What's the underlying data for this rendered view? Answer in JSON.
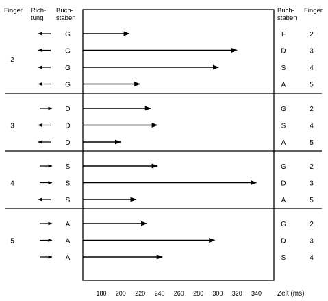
{
  "chart_data": {
    "type": "bar",
    "orientation": "horizontal",
    "headers": {
      "left_finger": "Finger",
      "left_direction": "Rich-tung",
      "left_letters": "Buch-staben",
      "right_letters": "Buch-staben",
      "right_finger": "Finger"
    },
    "xlabel": "Zeit (ms)",
    "x_ticks": [
      "180",
      "200",
      "220",
      "240",
      "260",
      "280",
      "300",
      "320",
      "340"
    ],
    "xlim": [
      160,
      360
    ],
    "groups": [
      {
        "finger": "2",
        "rows": [
          {
            "direction": "left",
            "letter": "G",
            "target_letter": "F",
            "target_finger": "2",
            "value": 209
          },
          {
            "direction": "left",
            "letter": "G",
            "target_letter": "D",
            "target_finger": "3",
            "value": 320
          },
          {
            "direction": "left",
            "letter": "G",
            "target_letter": "S",
            "target_finger": "4",
            "value": 301
          },
          {
            "direction": "left",
            "letter": "G",
            "target_letter": "A",
            "target_finger": "5",
            "value": 220
          }
        ]
      },
      {
        "finger": "3",
        "rows": [
          {
            "direction": "right",
            "letter": "D",
            "target_letter": "G",
            "target_finger": "2",
            "value": 231
          },
          {
            "direction": "left",
            "letter": "D",
            "target_letter": "S",
            "target_finger": "4",
            "value": 238
          },
          {
            "direction": "left",
            "letter": "D",
            "target_letter": "A",
            "target_finger": "5",
            "value": 200
          }
        ]
      },
      {
        "finger": "4",
        "rows": [
          {
            "direction": "right",
            "letter": "S",
            "target_letter": "G",
            "target_finger": "2",
            "value": 238
          },
          {
            "direction": "right",
            "letter": "S",
            "target_letter": "D",
            "target_finger": "3",
            "value": 340
          },
          {
            "direction": "left",
            "letter": "S",
            "target_letter": "A",
            "target_finger": "5",
            "value": 216
          }
        ]
      },
      {
        "finger": "5",
        "rows": [
          {
            "direction": "right",
            "letter": "A",
            "target_letter": "G",
            "target_finger": "2",
            "value": 227
          },
          {
            "direction": "right",
            "letter": "A",
            "target_letter": "D",
            "target_finger": "3",
            "value": 297
          },
          {
            "direction": "right",
            "letter": "A",
            "target_letter": "S",
            "target_finger": "4",
            "value": 243
          }
        ]
      }
    ],
    "grid": false,
    "colors": {
      "ink": "#000000",
      "background": "#ffffff"
    }
  }
}
